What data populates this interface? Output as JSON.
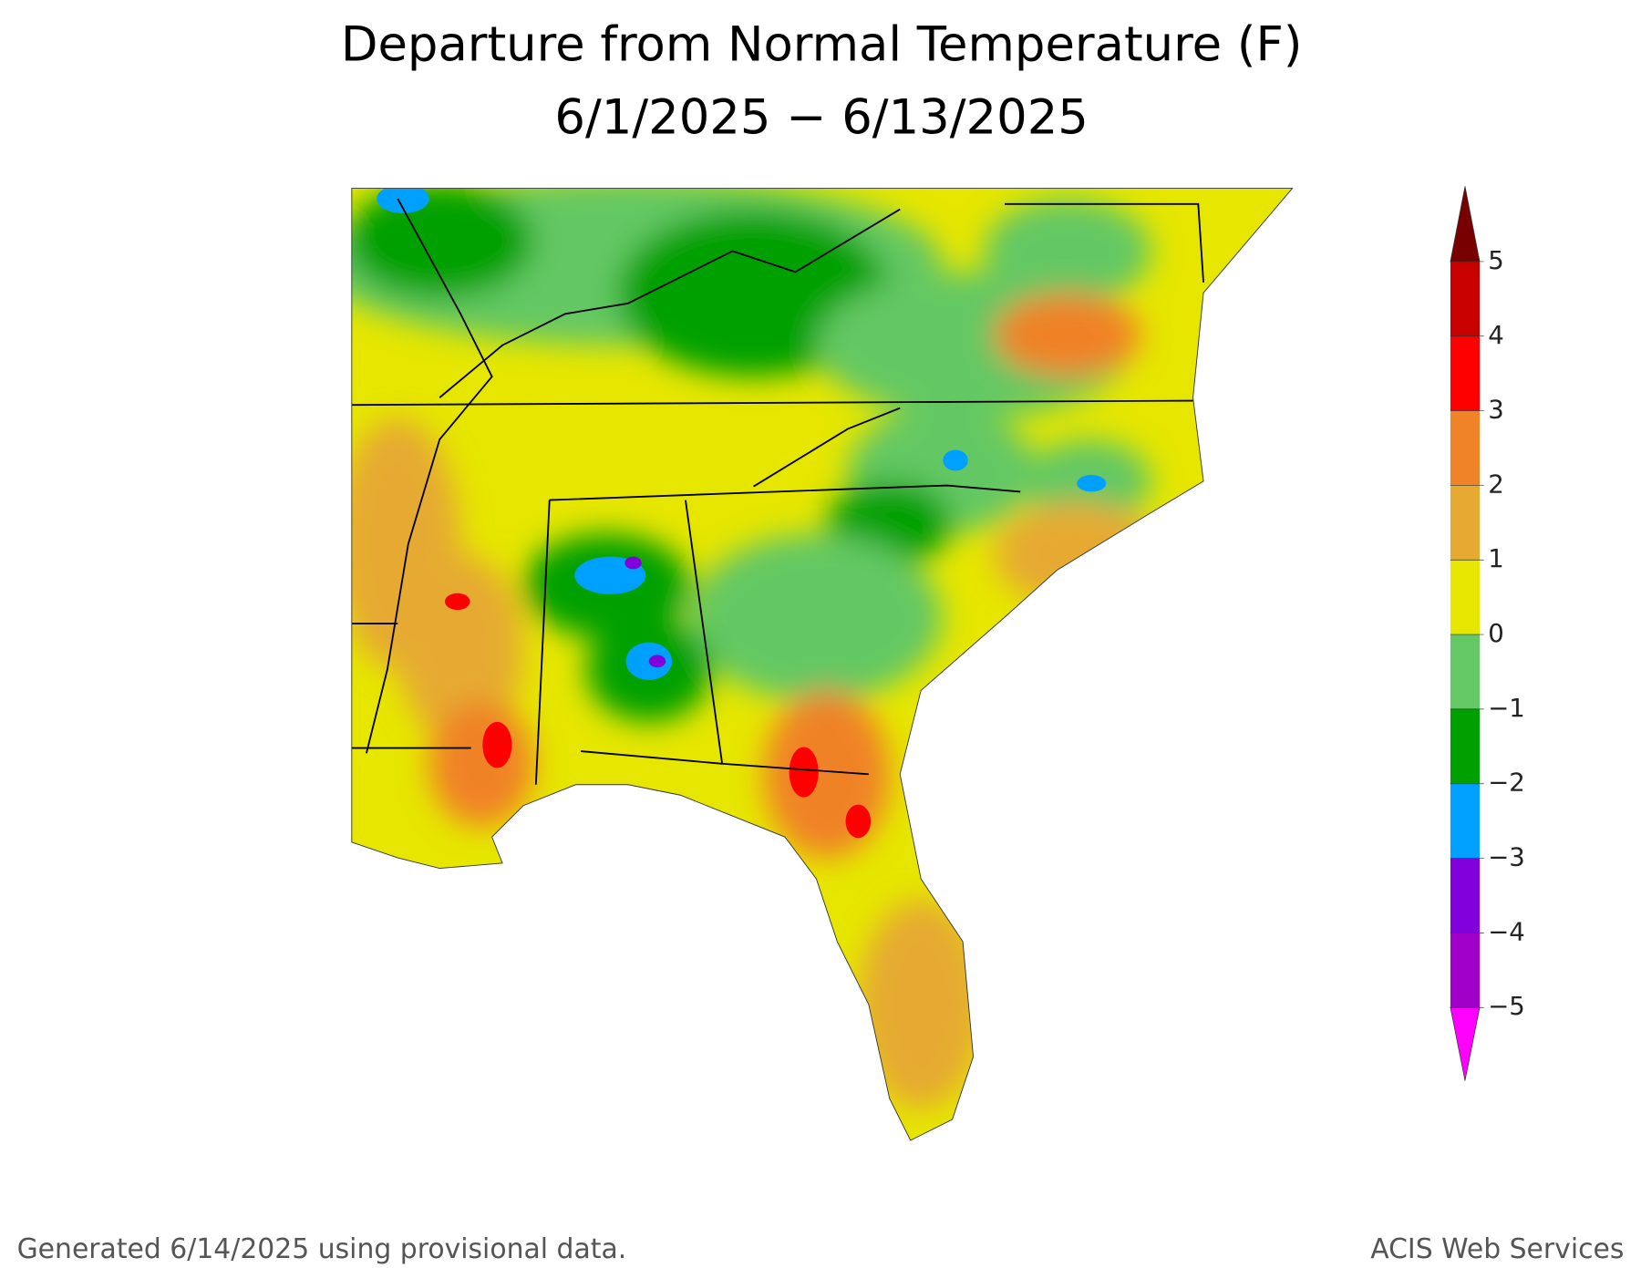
{
  "title": "Departure from Normal Temperature (F)",
  "subtitle": "6/1/2025 − 6/13/2025",
  "colorbar": {
    "lim": [
      -5,
      5
    ],
    "ticks": [
      {
        "value": -5,
        "label": "−5"
      },
      {
        "value": -4,
        "label": "−4"
      },
      {
        "value": -3,
        "label": "−3"
      },
      {
        "value": -2,
        "label": "−2"
      },
      {
        "value": -1,
        "label": "−1"
      },
      0,
      1,
      2,
      3,
      4,
      5
    ],
    "colors": [
      "#ff00ff",
      "#a000c8",
      "#8200dc",
      "#00a0ff",
      "#00a000",
      "#64c864",
      "#e6e600",
      "#e6aa32",
      "#f08228",
      "#ff0000",
      "#c80000",
      "#780000"
    ]
  },
  "footer": {
    "left": "Generated 6/14/2025 using provisional data.",
    "right": "ACIS Web Services"
  }
}
